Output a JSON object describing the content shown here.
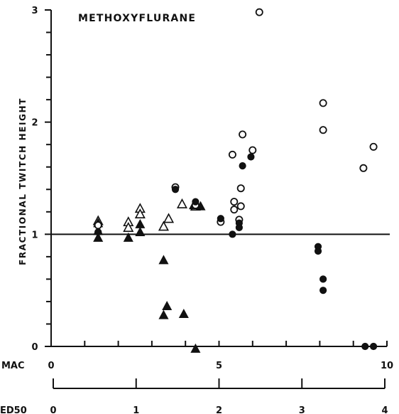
{
  "chart_data": {
    "type": "scatter",
    "title": "METHOXYFLURANE",
    "ylabel": "FRACTIONAL TWITCH HEIGHT",
    "ylim": [
      0,
      3
    ],
    "y_ticks": [
      "0",
      "1",
      "2",
      "3"
    ],
    "reference_line_y": 1,
    "x_axes": [
      {
        "name": "MAC",
        "range": [
          0,
          10
        ],
        "tick_labels": [
          "0",
          "5",
          "10"
        ]
      },
      {
        "name": "ED50",
        "range": [
          0,
          4
        ],
        "tick_labels": [
          "0",
          "1",
          "2",
          "3",
          "4"
        ]
      }
    ],
    "grid": false,
    "colors": {
      "ink": "#111111",
      "background": "#ffffff"
    },
    "series": [
      {
        "marker": "open-triangle",
        "points": [
          {
            "x": 1.4,
            "y": 1.12
          },
          {
            "x": 2.3,
            "y": 1.11
          },
          {
            "x": 2.3,
            "y": 1.06
          },
          {
            "x": 2.65,
            "y": 1.23
          },
          {
            "x": 2.65,
            "y": 1.18
          },
          {
            "x": 3.35,
            "y": 1.07
          },
          {
            "x": 3.5,
            "y": 1.14
          },
          {
            "x": 3.9,
            "y": 1.27
          },
          {
            "x": 4.3,
            "y": 1.25
          }
        ]
      },
      {
        "marker": "filled-triangle",
        "points": [
          {
            "x": 1.4,
            "y": 1.1
          },
          {
            "x": 1.4,
            "y": 1.03
          },
          {
            "x": 1.4,
            "y": 0.97
          },
          {
            "x": 2.3,
            "y": 0.97
          },
          {
            "x": 2.65,
            "y": 1.09
          },
          {
            "x": 2.65,
            "y": 1.02
          },
          {
            "x": 3.35,
            "y": 0.77
          },
          {
            "x": 3.45,
            "y": 0.36
          },
          {
            "x": 3.35,
            "y": 0.28
          },
          {
            "x": 3.95,
            "y": 0.29
          },
          {
            "x": 4.25,
            "y": 1.26
          },
          {
            "x": 4.45,
            "y": 1.25
          },
          {
            "x": 4.3,
            "y": -0.02
          }
        ]
      },
      {
        "marker": "open-circle",
        "points": [
          {
            "x": 1.4,
            "y": 1.08
          },
          {
            "x": 3.7,
            "y": 1.42
          },
          {
            "x": 4.3,
            "y": 1.26
          },
          {
            "x": 5.05,
            "y": 1.11
          },
          {
            "x": 5.4,
            "y": 1.71
          },
          {
            "x": 5.45,
            "y": 1.29
          },
          {
            "x": 5.45,
            "y": 1.22
          },
          {
            "x": 5.6,
            "y": 1.13
          },
          {
            "x": 5.65,
            "y": 1.41
          },
          {
            "x": 5.65,
            "y": 1.25
          },
          {
            "x": 5.7,
            "y": 1.89
          },
          {
            "x": 6.0,
            "y": 1.75
          },
          {
            "x": 6.2,
            "y": 2.98
          },
          {
            "x": 8.1,
            "y": 2.17
          },
          {
            "x": 8.1,
            "y": 1.93
          },
          {
            "x": 9.3,
            "y": 1.59
          },
          {
            "x": 9.6,
            "y": 1.78
          }
        ]
      },
      {
        "marker": "filled-circle",
        "points": [
          {
            "x": 1.4,
            "y": 1.02
          },
          {
            "x": 3.7,
            "y": 1.4
          },
          {
            "x": 4.3,
            "y": 1.29
          },
          {
            "x": 5.05,
            "y": 1.14
          },
          {
            "x": 5.4,
            "y": 1.0
          },
          {
            "x": 5.6,
            "y": 1.1
          },
          {
            "x": 5.6,
            "y": 1.06
          },
          {
            "x": 5.7,
            "y": 1.61
          },
          {
            "x": 5.95,
            "y": 1.69
          },
          {
            "x": 7.95,
            "y": 0.89
          },
          {
            "x": 7.95,
            "y": 0.85
          },
          {
            "x": 8.1,
            "y": 0.6
          },
          {
            "x": 8.1,
            "y": 0.5
          },
          {
            "x": 9.35,
            "y": 0.0
          },
          {
            "x": 9.6,
            "y": 0.0
          }
        ]
      }
    ]
  }
}
